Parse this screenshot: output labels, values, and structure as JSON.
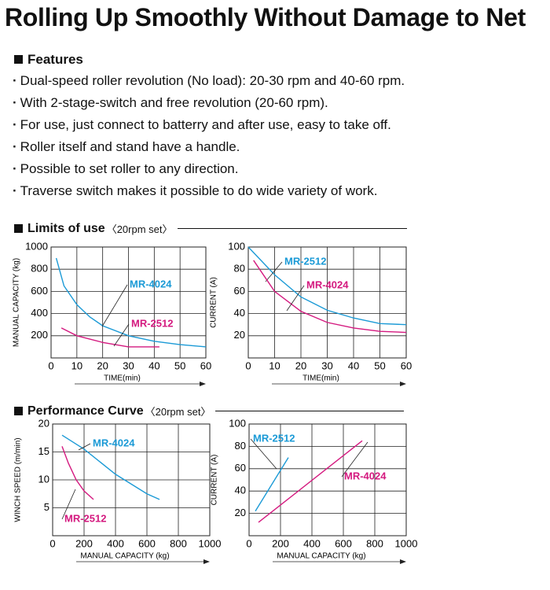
{
  "title": "Rolling Up Smoothly Without Damage to Net",
  "features": {
    "heading": "Features",
    "items": [
      "Dual-speed roller revolution (No load): 20-30 rpm and 40-60 rpm.",
      "With 2-stage-switch and free revolution (20-60 rpm).",
      "For use, just connect to batterry and after use, easy to take off.",
      "Roller itself and stand have a handle.",
      "Possible to set roller to any direction.",
      "Traverse switch makes it possible to do wide variety of work."
    ]
  },
  "sections": [
    {
      "title": "Limits of use",
      "note": "〈20rpm set〉"
    },
    {
      "title": "Performance Curve",
      "note": "〈20rpm set〉"
    }
  ],
  "chart_data": [
    {
      "type": "line",
      "xlabel": "TIME(min)",
      "ylabel": "MANUAL CAPACITY (kg)",
      "xlim": [
        0,
        60
      ],
      "xticks": [
        0,
        10,
        20,
        30,
        40,
        50,
        60
      ],
      "ylim": [
        0,
        1000
      ],
      "yticks": [
        200,
        400,
        600,
        800,
        1000
      ],
      "grid": true,
      "series": [
        {
          "name": "MR-4024",
          "color": "#1b9ad6",
          "x": [
            2,
            5,
            10,
            15,
            20,
            30,
            40,
            50,
            60
          ],
          "values": [
            900,
            650,
            480,
            370,
            290,
            200,
            150,
            120,
            100
          ]
        },
        {
          "name": "MR-2512",
          "color": "#d4197f",
          "x": [
            4,
            10,
            20,
            30,
            42
          ],
          "values": [
            270,
            200,
            140,
            100,
            100
          ]
        }
      ]
    },
    {
      "type": "line",
      "xlabel": "TIME(min)",
      "ylabel": "CURRENT (A)",
      "xlim": [
        0,
        60
      ],
      "xticks": [
        0,
        10,
        20,
        30,
        40,
        50,
        60
      ],
      "ylim": [
        0,
        100
      ],
      "yticks": [
        20,
        40,
        60,
        80,
        100
      ],
      "grid": true,
      "series": [
        {
          "name": "MR-2512",
          "color": "#1b9ad6",
          "x": [
            0,
            10,
            20,
            30,
            40,
            50,
            60
          ],
          "values": [
            100,
            75,
            55,
            43,
            36,
            31,
            30
          ]
        },
        {
          "name": "MR-4024",
          "color": "#d4197f",
          "x": [
            2,
            10,
            20,
            30,
            40,
            50,
            60
          ],
          "values": [
            88,
            60,
            42,
            32,
            27,
            24,
            23
          ]
        }
      ]
    },
    {
      "type": "line",
      "xlabel": "MANUAL CAPACITY (kg)",
      "ylabel": "WINCH SPEED (m/min)",
      "xlim": [
        0,
        1000
      ],
      "xticks": [
        0,
        200,
        400,
        600,
        800,
        1000
      ],
      "ylim": [
        0,
        20
      ],
      "yticks": [
        5,
        10,
        15,
        20
      ],
      "grid": true,
      "series": [
        {
          "name": "MR-4024",
          "color": "#1b9ad6",
          "x": [
            60,
            200,
            400,
            600,
            680
          ],
          "values": [
            18,
            15.5,
            11,
            7.5,
            6.5
          ]
        },
        {
          "name": "MR-2512",
          "color": "#d4197f",
          "x": [
            60,
            100,
            150,
            200,
            260
          ],
          "values": [
            16,
            13,
            10,
            8,
            6.5
          ]
        }
      ]
    },
    {
      "type": "line",
      "xlabel": "MANUAL CAPACITY (kg)",
      "ylabel": "CURRENT (A)",
      "xlim": [
        0,
        1000
      ],
      "xticks": [
        0,
        200,
        400,
        600,
        800,
        1000
      ],
      "ylim": [
        0,
        100
      ],
      "yticks": [
        20,
        40,
        60,
        80,
        100
      ],
      "grid": true,
      "series": [
        {
          "name": "MR-2512",
          "color": "#1b9ad6",
          "x": [
            40,
            250
          ],
          "values": [
            22,
            70
          ]
        },
        {
          "name": "MR-4024",
          "color": "#d4197f",
          "x": [
            60,
            720
          ],
          "values": [
            12,
            85
          ]
        }
      ]
    }
  ]
}
